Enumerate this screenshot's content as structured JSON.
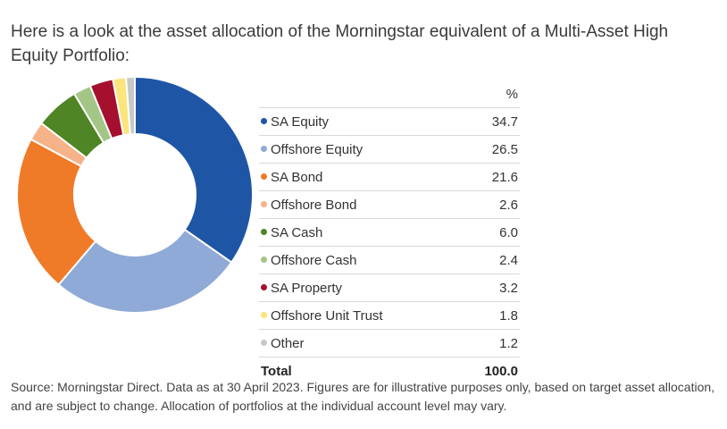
{
  "intro_text": "Here is a look at the asset allocation of the Morningstar equivalent of a Multi-Asset High Equity Portfolio:",
  "table": {
    "unit_header": "%",
    "total_label": "Total",
    "total_value": "100.0"
  },
  "source_text": "Source: Morningstar Direct. Data as at 30 April 2023. Figures are for illustrative purposes only, based on target asset allocation, and are subject to change. Allocation of portfolios at the individual account level may vary.",
  "chart_data": {
    "type": "pie",
    "variant": "donut",
    "categories": [
      "SA Equity",
      "Offshore Equity",
      "SA Bond",
      "Offshore Bond",
      "SA Cash",
      "Offshore Cash",
      "SA Property",
      "Offshore Unit Trust",
      "Other"
    ],
    "values": [
      34.7,
      26.5,
      21.6,
      2.6,
      6.0,
      2.4,
      3.2,
      1.8,
      1.2
    ],
    "value_labels": [
      "34.7",
      "26.5",
      "21.6",
      "2.6",
      "6.0",
      "2.4",
      "3.2",
      "1.8",
      "1.2"
    ],
    "colors": [
      "#1f55a5",
      "#8faad6",
      "#ef7a27",
      "#f6b288",
      "#4f8524",
      "#a3c586",
      "#a5102f",
      "#fbe57c",
      "#c8c8c8"
    ],
    "legend_placement": "right"
  }
}
